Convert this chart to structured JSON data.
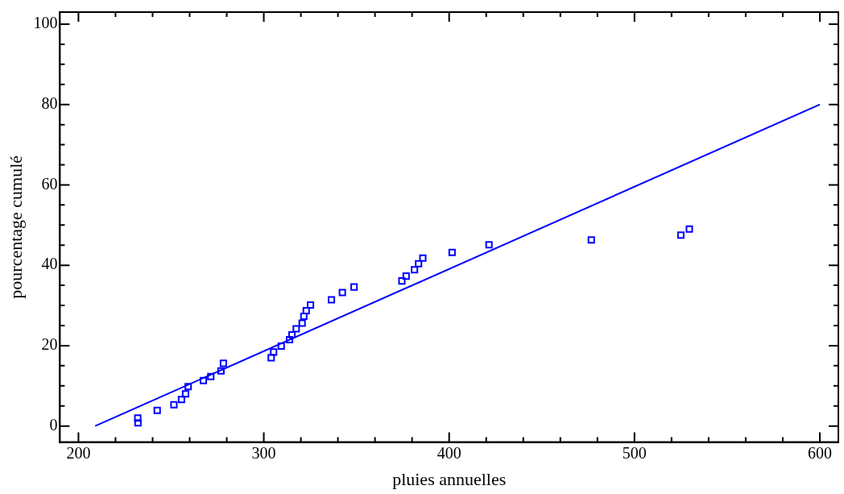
{
  "chart_data": {
    "type": "scatter",
    "xlabel": "pluies annuelles",
    "ylabel": "pourcentage cumulé",
    "xlim": [
      190,
      610
    ],
    "ylim": [
      -4,
      103
    ],
    "xticks": [
      200,
      300,
      400,
      500,
      600
    ],
    "yticks": [
      0,
      20,
      40,
      60,
      80,
      100
    ],
    "grid": false,
    "legend": false,
    "marker": "square",
    "series": [
      {
        "color": "#0000ff",
        "x": [
          232.1,
          232,
          242.5,
          251.5,
          255.6,
          257.8,
          259.2,
          267.4,
          271.4,
          276.9,
          278.2,
          304,
          305.3,
          309.4,
          313.9,
          315.2,
          317.5,
          320.7,
          321.6,
          322.9,
          325.2,
          336.5,
          342.4,
          348.7,
          374.5,
          376.8,
          381.3,
          383.5,
          385.8,
          401.6,
          421.5,
          476.7,
          525,
          529.6
        ],
        "values": [
          0.8,
          2,
          3.9,
          5.3,
          6.6,
          8,
          9.8,
          11.3,
          12.3,
          13.7,
          15.6,
          17,
          18.4,
          19.9,
          21.5,
          22.7,
          24.2,
          25.6,
          27.3,
          28.7,
          30.1,
          31.4,
          33.2,
          34.6,
          36.1,
          37.3,
          38.9,
          40.4,
          41.8,
          43.2,
          45.1,
          46.3,
          47.5,
          49
        ]
      },
      {
        "type": "line",
        "color": "#0000ff",
        "marker": "none",
        "line_style": "solid",
        "x": [
          209,
          600
        ],
        "values": [
          0,
          80
        ]
      }
    ]
  }
}
